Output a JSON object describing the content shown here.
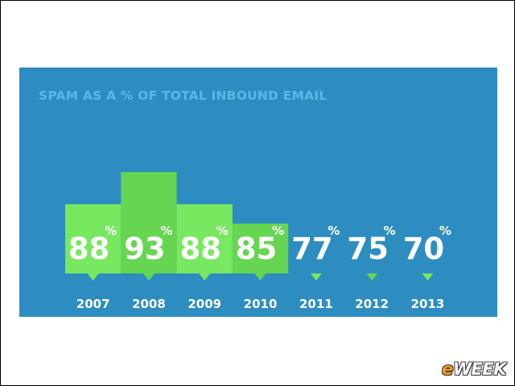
{
  "brand": {
    "logo_e": "e",
    "logo_rest": "WEEK",
    "logo_e_color": "#f2a01a"
  },
  "colors": {
    "panel": "#2e8dc0",
    "title": "#5ab8e8",
    "bar_light": "#77e860",
    "bar_dark": "#66d552",
    "text": "#ffffff"
  },
  "chart_data": {
    "type": "bar",
    "title": "SPAM AS A % OF TOTAL INBOUND EMAIL",
    "xlabel": "",
    "ylabel": "",
    "categories": [
      "2007",
      "2008",
      "2009",
      "2010",
      "2011",
      "2012",
      "2013"
    ],
    "values": [
      88,
      93,
      88,
      85,
      77,
      75,
      70
    ],
    "value_suffix": "%",
    "grid": false,
    "legend": "none"
  }
}
